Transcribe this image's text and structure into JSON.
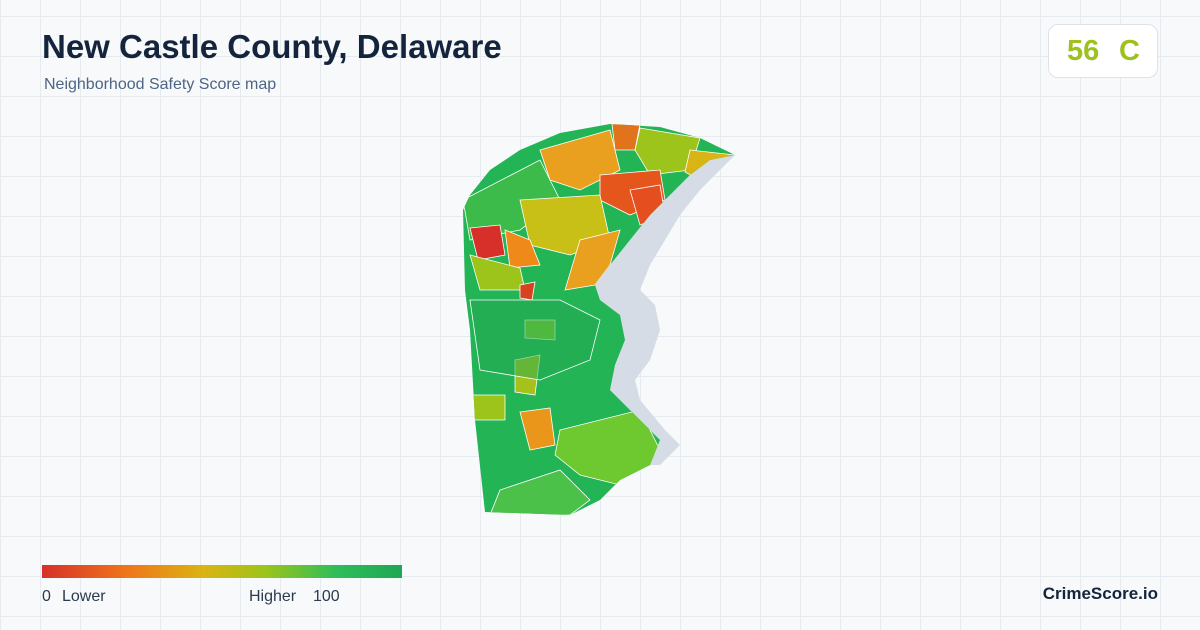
{
  "header": {
    "title": "New Castle County, Delaware",
    "subtitle": "Neighborhood Safety Score map"
  },
  "score": {
    "value": 56,
    "grade": "C"
  },
  "legend": {
    "min": 0,
    "min_label": "Lower",
    "max_label": "Higher",
    "max": 100
  },
  "brand": "CrimeScore.io"
}
